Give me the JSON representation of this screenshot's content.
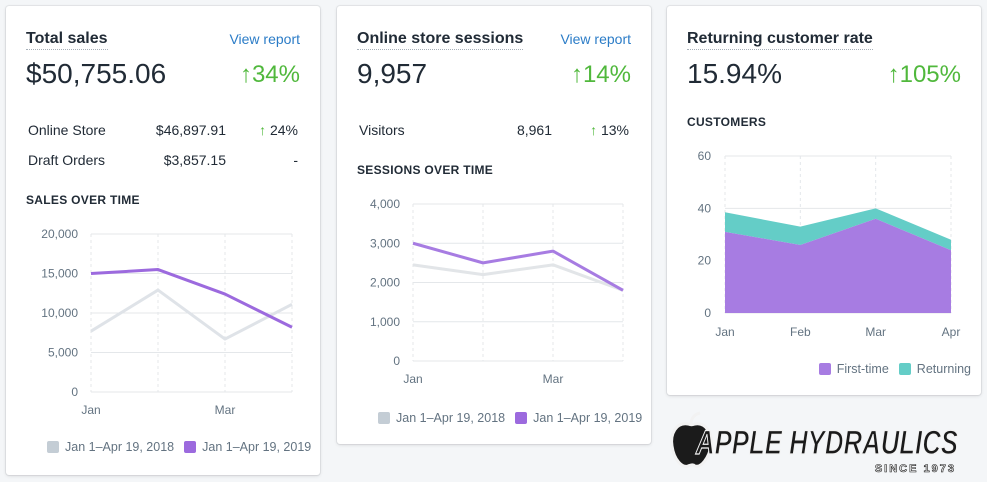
{
  "colors": {
    "accent_link": "#2b7cc7",
    "positive": "#50b83c",
    "series_2019": "#9c6ade",
    "series_2018": "#dfe3e8",
    "first_time": "#a77ce2",
    "returning": "#64cdc7"
  },
  "cards": {
    "sales": {
      "title": "Total sales",
      "link": "View report",
      "value": "$50,755.06",
      "change": "34%",
      "rows": [
        {
          "label": "Online Store",
          "value": "$46,897.91",
          "change": "24%"
        },
        {
          "label": "Draft Orders",
          "value": "$3,857.15",
          "change": "-"
        }
      ],
      "section": "SALES OVER TIME",
      "legend": [
        "Jan 1–Apr 19, 2018",
        "Jan 1–Apr 19, 2019"
      ]
    },
    "sessions": {
      "title": "Online store sessions",
      "link": "View report",
      "value": "9,957",
      "change": "14%",
      "rows": [
        {
          "label": "Visitors",
          "value": "8,961",
          "change": "13%"
        }
      ],
      "section": "SESSIONS OVER TIME",
      "legend": [
        "Jan 1–Apr 19, 2018",
        "Jan 1–Apr 19, 2019"
      ]
    },
    "returning": {
      "title": "Returning customer rate",
      "value": "15.94%",
      "change": "105%",
      "section": "CUSTOMERS",
      "legend": [
        "First-time",
        "Returning"
      ]
    }
  },
  "logo": {
    "name": "APPLE HYDRAULICS",
    "tagline": "SINCE 1973"
  },
  "chart_data": [
    {
      "type": "line",
      "x_labels": [
        "Jan",
        "",
        "Mar",
        ""
      ],
      "y_ticks": [
        "0",
        "5,000",
        "10,000",
        "15,000",
        "20,000"
      ],
      "ylim": [
        0,
        20000
      ],
      "series": [
        {
          "name": "Jan 1–Apr 19, 2018",
          "values": [
            7700,
            12900,
            6700,
            11100
          ]
        },
        {
          "name": "Jan 1–Apr 19, 2019",
          "values": [
            15000,
            15500,
            12400,
            8200
          ]
        }
      ]
    },
    {
      "type": "line",
      "x_labels": [
        "Jan",
        "",
        "Mar",
        ""
      ],
      "y_ticks": [
        "0",
        "1,000",
        "2,000",
        "3,000",
        "4,000"
      ],
      "ylim": [
        0,
        4000
      ],
      "series": [
        {
          "name": "Jan 1–Apr 19, 2018",
          "values": [
            2450,
            2200,
            2450,
            1800
          ]
        },
        {
          "name": "Jan 1–Apr 19, 2019",
          "values": [
            3000,
            2500,
            2800,
            1800
          ]
        }
      ]
    },
    {
      "type": "area",
      "stacked": true,
      "categories": [
        "Jan",
        "Feb",
        "Mar",
        "Apr"
      ],
      "y_ticks": [
        "0",
        "20",
        "40",
        "60"
      ],
      "ylim": [
        0,
        60
      ],
      "series": [
        {
          "name": "First-time",
          "values": [
            31,
            26,
            36,
            24
          ]
        },
        {
          "name": "Returning",
          "values": [
            7.5,
            7,
            4,
            4
          ]
        }
      ]
    }
  ]
}
